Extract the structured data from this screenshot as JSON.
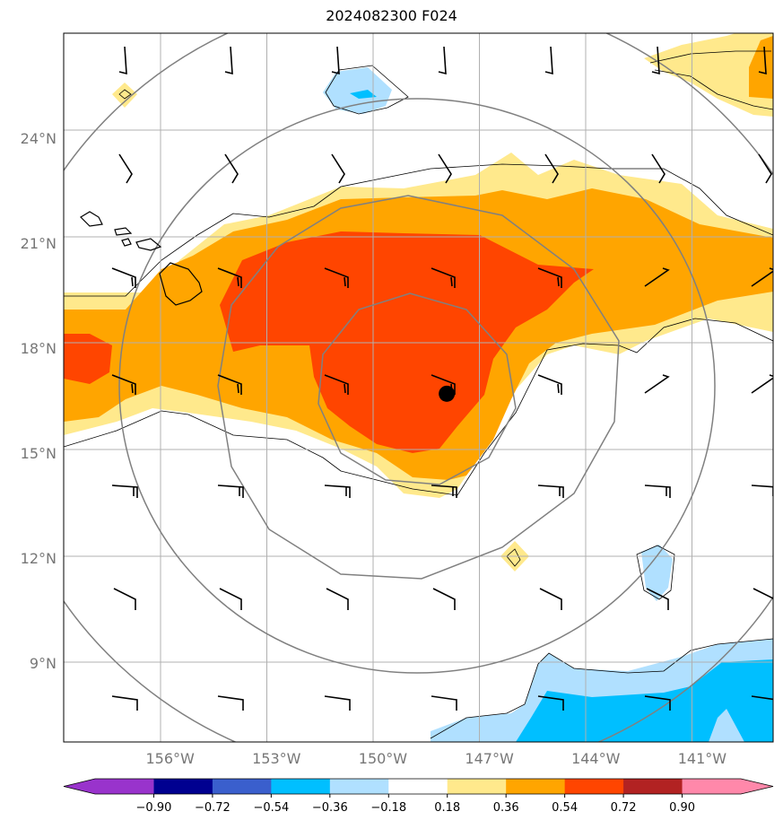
{
  "title": "2024082300 F024",
  "map": {
    "lon_range": [
      -159,
      -139
    ],
    "lat_range": [
      6.75,
      27
    ],
    "lon_ticks": [
      {
        "value": -156,
        "label": "156°W"
      },
      {
        "value": -153,
        "label": "153°W"
      },
      {
        "value": -150,
        "label": "150°W"
      },
      {
        "value": -147,
        "label": "147°W"
      },
      {
        "value": -144,
        "label": "144°W"
      },
      {
        "value": -141,
        "label": "141°W"
      }
    ],
    "lat_ticks": [
      {
        "value": 24,
        "label": "24°N"
      },
      {
        "value": 21,
        "label": "21°N"
      },
      {
        "value": 18,
        "label": "18°N"
      },
      {
        "value": 15,
        "label": "15°N"
      },
      {
        "value": 12,
        "label": "12°N"
      },
      {
        "value": 9,
        "label": "9°N"
      }
    ],
    "grid": true,
    "storm_center": {
      "lon": -148.2,
      "lat": 16.7
    },
    "range_rings_deg": [
      3,
      6,
      9,
      12
    ]
  },
  "colorbar": {
    "levels": [
      "−0.90",
      "−0.72",
      "−0.54",
      "−0.36",
      "−0.18",
      "0.18",
      "0.36",
      "0.54",
      "0.72",
      "0.90"
    ],
    "colors": [
      "#9933cc",
      "#000090",
      "#3a5fcd",
      "#00bfff",
      "#b0e0ff",
      "#ffffff",
      "#ffe98c",
      "#ffa500",
      "#ff4500",
      "#b22222",
      "#ff88aa"
    ],
    "extend": "both"
  },
  "colors": {
    "light_yellow": "#ffe98c",
    "orange": "#ffa500",
    "red_orange": "#ff4500",
    "light_blue": "#b0e0ff",
    "deep_sky_blue": "#00bfff",
    "gridline": "#b0b0b0",
    "ring": "#808080"
  }
}
